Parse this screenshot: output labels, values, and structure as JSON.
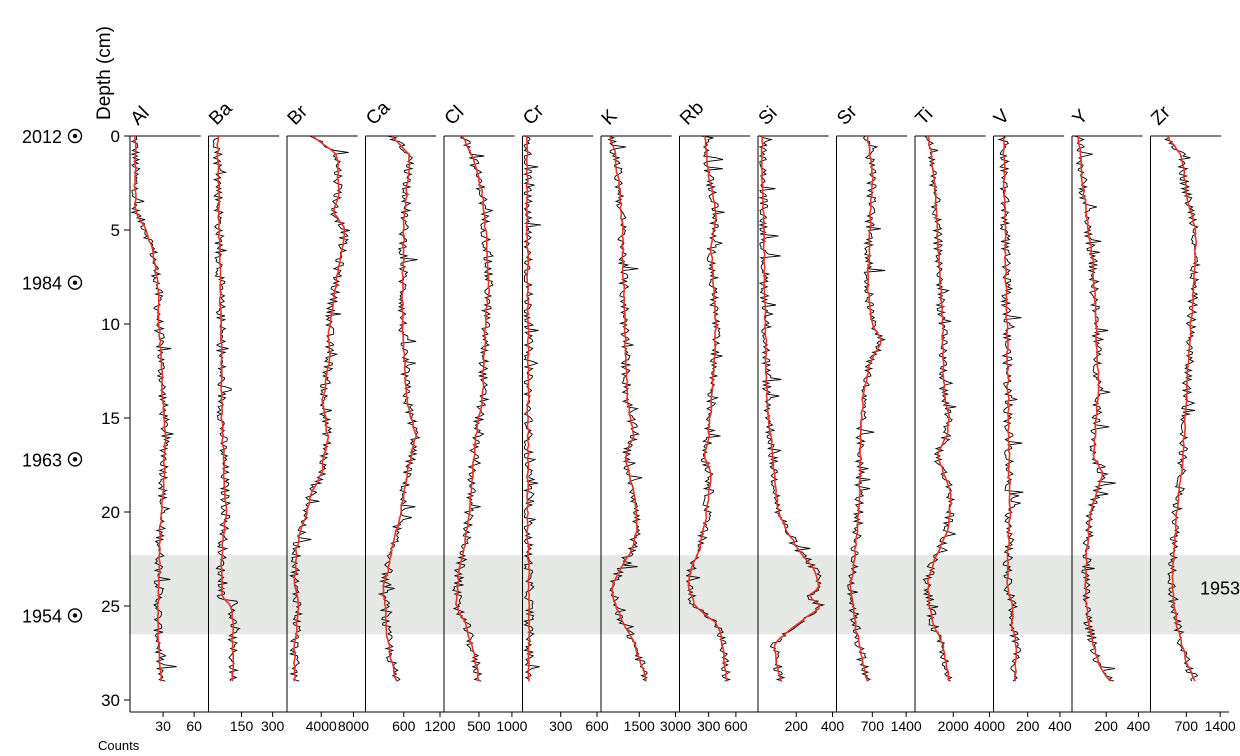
{
  "chart_data": {
    "type": "line",
    "y_axis": {
      "label": "Depth (cm)",
      "range": [
        0,
        30
      ],
      "ticks": [
        0,
        5,
        10,
        15,
        20,
        25,
        30
      ],
      "inverted": true
    },
    "x_axis_label": "Counts",
    "date_markers": [
      {
        "year": "2012",
        "depth": 0
      },
      {
        "year": "1984",
        "depth": 7.8
      },
      {
        "year": "1963",
        "depth": 17.2
      },
      {
        "year": "1954",
        "depth": 25.5
      }
    ],
    "shaded_band": {
      "from": 22.3,
      "to": 26.5,
      "label": "1953",
      "color": "#e6e8e6"
    },
    "series_colors": {
      "raw": "#000000",
      "smoothed": "#e8352a"
    },
    "tracks": [
      {
        "element": "Al",
        "range": [
          0,
          70
        ],
        "ticks": [
          30,
          60
        ],
        "tick_labels": [
          "30",
          "60"
        ],
        "profile": [
          [
            0,
            3
          ],
          [
            2,
            3
          ],
          [
            4,
            3
          ],
          [
            4.8,
            12
          ],
          [
            6,
            20
          ],
          [
            8,
            25
          ],
          [
            10,
            26
          ],
          [
            12,
            28
          ],
          [
            14,
            30
          ],
          [
            16,
            32
          ],
          [
            18,
            31
          ],
          [
            20,
            28
          ],
          [
            22,
            27
          ],
          [
            24,
            26
          ],
          [
            26,
            25
          ],
          [
            28,
            27
          ],
          [
            29,
            28
          ]
        ]
      },
      {
        "element": "Ba",
        "range": [
          0,
          350
        ],
        "ticks": [
          150,
          300
        ],
        "tick_labels": [
          "150",
          "300"
        ],
        "profile": [
          [
            0,
            35
          ],
          [
            5,
            42
          ],
          [
            10,
            50
          ],
          [
            15,
            55
          ],
          [
            20,
            75
          ],
          [
            21,
            65
          ],
          [
            23,
            50
          ],
          [
            24.5,
            55
          ],
          [
            25,
            100
          ],
          [
            26,
            110
          ],
          [
            27,
            105
          ],
          [
            29,
            110
          ]
        ]
      },
      {
        "element": "Br",
        "range": [
          0,
          9000
        ],
        "ticks": [
          4000,
          8000
        ],
        "tick_labels": [
          "4000",
          "8000"
        ],
        "profile": [
          [
            0,
            3000
          ],
          [
            0.5,
            4500
          ],
          [
            1,
            6000
          ],
          [
            3,
            6200
          ],
          [
            4,
            5500
          ],
          [
            5,
            7000
          ],
          [
            6,
            6500
          ],
          [
            8,
            5800
          ],
          [
            10,
            5000
          ],
          [
            12,
            5000
          ],
          [
            14,
            4200
          ],
          [
            16,
            4800
          ],
          [
            18,
            4000
          ],
          [
            19,
            2800
          ],
          [
            20,
            2200
          ],
          [
            21,
            1500
          ],
          [
            22,
            900
          ],
          [
            24,
            700
          ],
          [
            25,
            1200
          ],
          [
            27,
            700
          ],
          [
            29,
            700
          ]
        ]
      },
      {
        "element": "Ca",
        "range": [
          0,
          1200
        ],
        "ticks": [
          600,
          1200
        ],
        "tick_labels": [
          "600",
          "1200"
        ],
        "profile": [
          [
            0,
            400
          ],
          [
            1,
            700
          ],
          [
            3,
            650
          ],
          [
            5,
            600
          ],
          [
            10,
            580
          ],
          [
            14,
            650
          ],
          [
            16,
            800
          ],
          [
            18,
            650
          ],
          [
            20,
            550
          ],
          [
            22,
            400
          ],
          [
            23,
            350
          ],
          [
            24,
            250
          ],
          [
            25,
            300
          ],
          [
            26,
            300
          ],
          [
            28,
            400
          ],
          [
            29,
            480
          ]
        ]
      },
      {
        "element": "Cl",
        "range": [
          0,
          1100
        ],
        "ticks": [
          500,
          1000
        ],
        "tick_labels": [
          "500",
          "1000"
        ],
        "profile": [
          [
            0,
            250
          ],
          [
            1,
            400
          ],
          [
            3,
            550
          ],
          [
            5,
            600
          ],
          [
            8,
            650
          ],
          [
            10,
            600
          ],
          [
            14,
            550
          ],
          [
            16,
            450
          ],
          [
            18,
            400
          ],
          [
            20,
            350
          ],
          [
            22,
            280
          ],
          [
            23,
            200
          ],
          [
            25,
            150
          ],
          [
            26,
            300
          ],
          [
            28,
            450
          ],
          [
            29,
            500
          ]
        ]
      },
      {
        "element": "Cr",
        "range": [
          0,
          600
        ],
        "ticks": [
          300,
          600
        ],
        "tick_labels": [
          "300",
          "600"
        ],
        "profile": [
          [
            0,
            20
          ],
          [
            5,
            25
          ],
          [
            10,
            30
          ],
          [
            15,
            30
          ],
          [
            20,
            25
          ],
          [
            25,
            40
          ],
          [
            29,
            35
          ]
        ]
      },
      {
        "element": "K",
        "range": [
          0,
          3000
        ],
        "ticks": [
          1500,
          3000
        ],
        "tick_labels": [
          "1500",
          "3000"
        ],
        "profile": [
          [
            0,
            300
          ],
          [
            1,
            500
          ],
          [
            3,
            700
          ],
          [
            5,
            800
          ],
          [
            10,
            900
          ],
          [
            14,
            1000
          ],
          [
            16,
            1300
          ],
          [
            17,
            900
          ],
          [
            19,
            1300
          ],
          [
            21,
            1400
          ],
          [
            22,
            1200
          ],
          [
            23,
            700
          ],
          [
            24,
            400
          ],
          [
            25,
            500
          ],
          [
            26,
            900
          ],
          [
            27,
            1300
          ],
          [
            29,
            1800
          ]
        ]
      },
      {
        "element": "Rb",
        "range": [
          0,
          800
        ],
        "ticks": [
          300,
          600
        ],
        "tick_labels": [
          "300",
          "600"
        ],
        "profile": [
          [
            0,
            250
          ],
          [
            2,
            300
          ],
          [
            4,
            380
          ],
          [
            6,
            330
          ],
          [
            8,
            350
          ],
          [
            10,
            380
          ],
          [
            12,
            360
          ],
          [
            14,
            330
          ],
          [
            16,
            300
          ],
          [
            17,
            250
          ],
          [
            18,
            320
          ],
          [
            20,
            280
          ],
          [
            22,
            200
          ],
          [
            23,
            100
          ],
          [
            24,
            80
          ],
          [
            25,
            150
          ],
          [
            26,
            400
          ],
          [
            27,
            450
          ],
          [
            29,
            500
          ]
        ]
      },
      {
        "element": "Si",
        "range": [
          0,
          400
        ],
        "ticks": [
          200,
          400
        ],
        "tick_labels": [
          "200",
          "400"
        ],
        "profile": [
          [
            0,
            10
          ],
          [
            5,
            20
          ],
          [
            10,
            30
          ],
          [
            14,
            40
          ],
          [
            16,
            60
          ],
          [
            18,
            80
          ],
          [
            20,
            100
          ],
          [
            21,
            150
          ],
          [
            22,
            210
          ],
          [
            23,
            300
          ],
          [
            24,
            330
          ],
          [
            24.5,
            260
          ],
          [
            25,
            340
          ],
          [
            26,
            200
          ],
          [
            27,
            80
          ],
          [
            28,
            90
          ],
          [
            29,
            120
          ]
        ]
      },
      {
        "element": "Sr",
        "range": [
          0,
          1500
        ],
        "ticks": [
          700,
          1400
        ],
        "tick_labels": [
          "700",
          "1400"
        ],
        "profile": [
          [
            0,
            600
          ],
          [
            2,
            700
          ],
          [
            5,
            650
          ],
          [
            8,
            600
          ],
          [
            10,
            700
          ],
          [
            11,
            900
          ],
          [
            12,
            650
          ],
          [
            14,
            500
          ],
          [
            16,
            450
          ],
          [
            18,
            450
          ],
          [
            20,
            420
          ],
          [
            22,
            350
          ],
          [
            24,
            250
          ],
          [
            26,
            350
          ],
          [
            28,
            500
          ],
          [
            29,
            600
          ]
        ]
      },
      {
        "element": "Ti",
        "range": [
          0,
          4000
        ],
        "ticks": [
          2000,
          4000
        ],
        "tick_labels": [
          "2000",
          "4000"
        ],
        "profile": [
          [
            0,
            600
          ],
          [
            1,
            800
          ],
          [
            3,
            1000
          ],
          [
            5,
            1100
          ],
          [
            8,
            1300
          ],
          [
            10,
            1400
          ],
          [
            14,
            1500
          ],
          [
            15,
            1800
          ],
          [
            16,
            1600
          ],
          [
            17,
            1100
          ],
          [
            18,
            1500
          ],
          [
            19,
            1900
          ],
          [
            21,
            1700
          ],
          [
            22,
            1200
          ],
          [
            23.5,
            600
          ],
          [
            25,
            700
          ],
          [
            26,
            900
          ],
          [
            27,
            1400
          ],
          [
            29,
            1800
          ]
        ]
      },
      {
        "element": "V",
        "range": [
          0,
          450
        ],
        "ticks": [
          200,
          400
        ],
        "tick_labels": [
          "200",
          "400"
        ],
        "profile": [
          [
            0,
            50
          ],
          [
            5,
            60
          ],
          [
            10,
            70
          ],
          [
            15,
            80
          ],
          [
            20,
            90
          ],
          [
            24,
            70
          ],
          [
            25,
            110
          ],
          [
            26,
            100
          ],
          [
            27,
            130
          ],
          [
            29,
            120
          ]
        ]
      },
      {
        "element": "Y",
        "range": [
          0,
          450
        ],
        "ticks": [
          200,
          400
        ],
        "tick_labels": [
          "200",
          "400"
        ],
        "profile": [
          [
            0,
            30
          ],
          [
            3,
            60
          ],
          [
            5,
            90
          ],
          [
            7,
            120
          ],
          [
            9,
            130
          ],
          [
            11,
            140
          ],
          [
            13,
            150
          ],
          [
            15,
            140
          ],
          [
            17,
            120
          ],
          [
            18,
            180
          ],
          [
            20,
            100
          ],
          [
            22,
            80
          ],
          [
            24,
            70
          ],
          [
            26,
            90
          ],
          [
            28,
            150
          ],
          [
            29,
            220
          ]
        ]
      },
      {
        "element": "Zr",
        "range": [
          0,
          1500
        ],
        "ticks": [
          700,
          1400
        ],
        "tick_labels": [
          "700",
          "1400"
        ],
        "profile": [
          [
            0,
            300
          ],
          [
            1,
            600
          ],
          [
            3,
            700
          ],
          [
            5,
            900
          ],
          [
            8,
            850
          ],
          [
            10,
            800
          ],
          [
            12,
            750
          ],
          [
            14,
            700
          ],
          [
            16,
            650
          ],
          [
            18,
            600
          ],
          [
            20,
            500
          ],
          [
            22,
            450
          ],
          [
            24,
            400
          ],
          [
            26,
            500
          ],
          [
            28,
            700
          ],
          [
            29,
            900
          ]
        ]
      }
    ]
  }
}
